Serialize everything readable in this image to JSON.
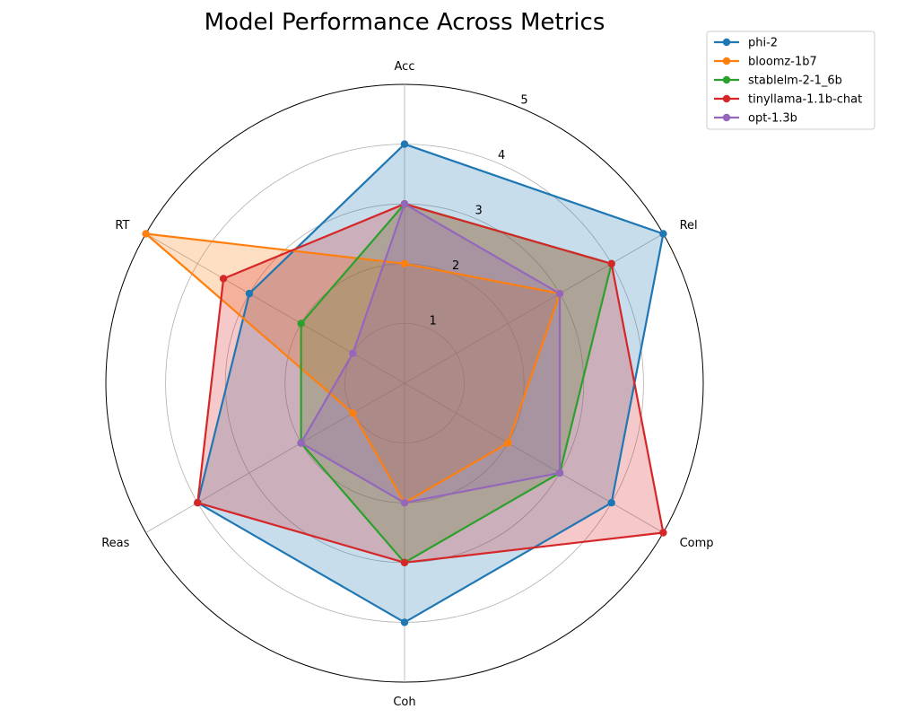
{
  "chart_data": {
    "type": "radar",
    "title": "Model Performance Across Metrics",
    "axes": [
      "Acc",
      "Rel",
      "Comp",
      "Coh",
      "Reas",
      "RT"
    ],
    "radial_ticks": [
      1,
      2,
      3,
      4,
      5
    ],
    "rlim": [
      0,
      5
    ],
    "grid": true,
    "legend_position": "top-right",
    "series": [
      {
        "name": "phi-2",
        "color": "#1f77b4",
        "values": [
          4,
          5,
          4,
          4,
          4,
          3
        ]
      },
      {
        "name": "bloomz-1b7",
        "color": "#ff7f0e",
        "values": [
          2,
          3,
          2,
          2,
          1,
          5
        ]
      },
      {
        "name": "stablelm-2-1_6b",
        "color": "#2ca02c",
        "values": [
          3,
          4,
          3,
          3,
          2,
          2
        ]
      },
      {
        "name": "tinyllama-1.1b-chat",
        "color": "#d62728",
        "values": [
          3,
          4,
          5,
          3,
          4,
          3.5
        ]
      },
      {
        "name": "opt-1.3b",
        "color": "#9467bd",
        "values": [
          3,
          3,
          3,
          2,
          2,
          1
        ]
      }
    ]
  }
}
